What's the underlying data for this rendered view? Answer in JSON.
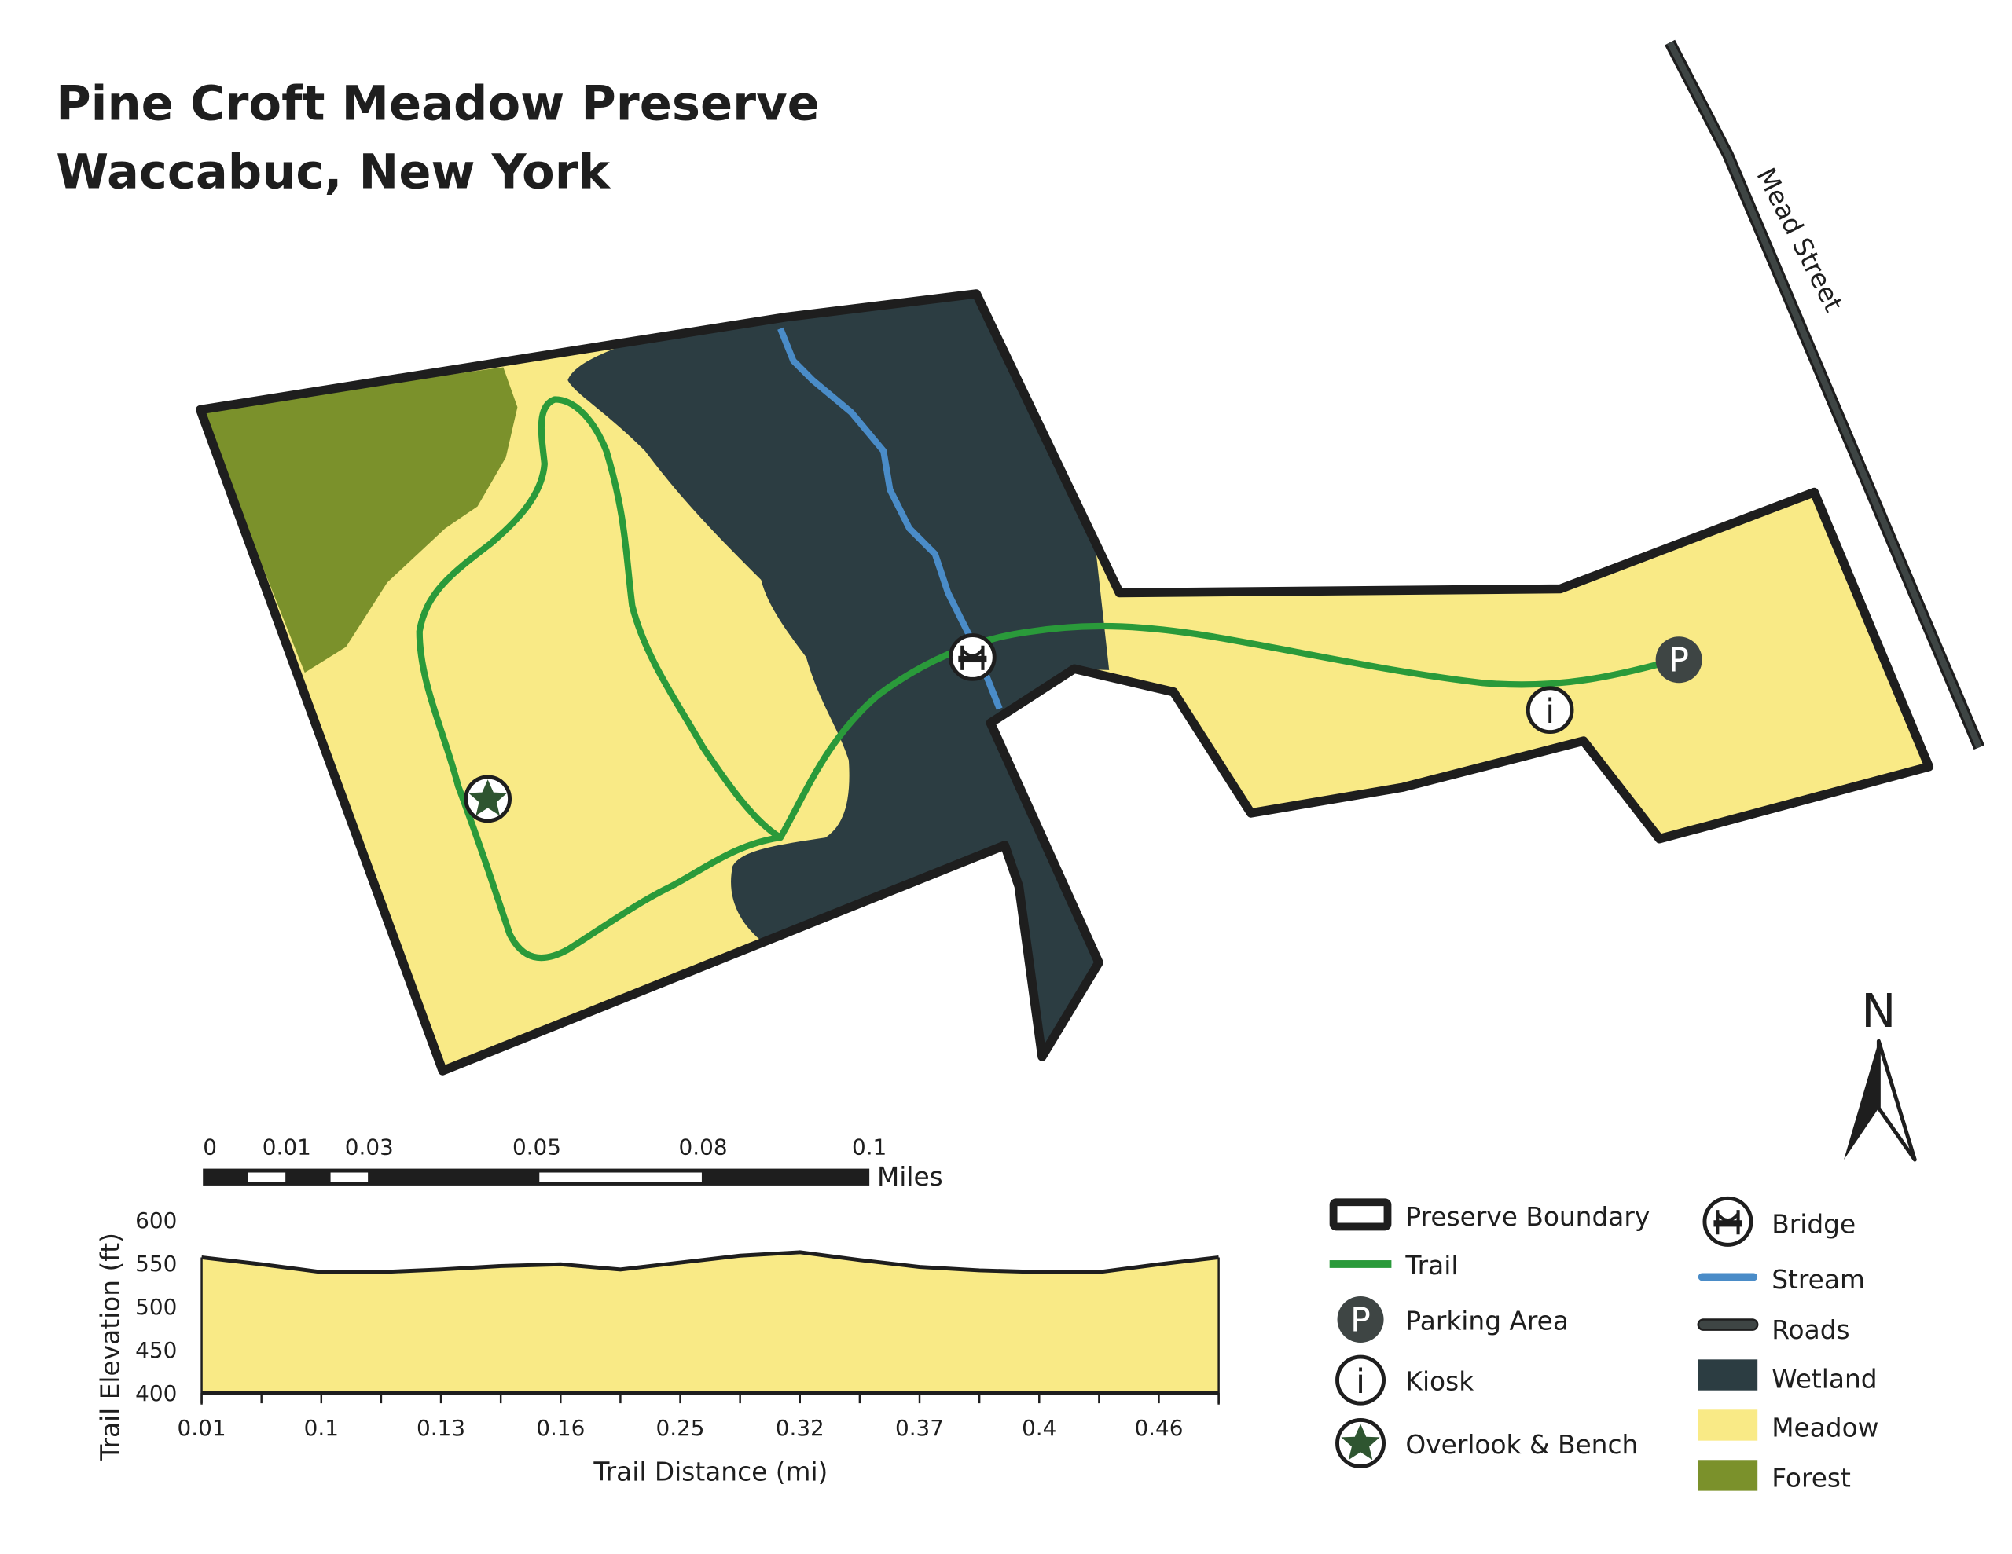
{
  "title": {
    "line1": "Pine Croft Meadow Preserve",
    "line2": "Waccabuc, New York"
  },
  "road_label": "Mead Street",
  "north_label": "N",
  "colors": {
    "boundary": "#1e1e1e",
    "trail": "#2a9a3a",
    "stream": "#4a8cc8",
    "road": "#3e4544",
    "wetland": "#2c3d42",
    "meadow": "#f9ea86",
    "forest": "#7b912b",
    "parking": "#3e4544",
    "overlook_star": "#2e5530"
  },
  "map_symbols": {
    "bridge": "bridge-icon",
    "parking": "parking-icon",
    "kiosk": "info-icon",
    "overlook": "star-icon",
    "parking_letter": "P",
    "kiosk_letter": "i"
  },
  "scale_bar": {
    "labels": [
      "0",
      "0.01",
      "0.03",
      "0.05",
      "0.08",
      "0.1"
    ],
    "unit": "Miles"
  },
  "legend": {
    "left": [
      {
        "icon": "boundary-swatch",
        "label": "Preserve Boundary"
      },
      {
        "icon": "trail-line",
        "label": "Trail"
      },
      {
        "icon": "parking-icon",
        "label": "Parking Area"
      },
      {
        "icon": "info-icon",
        "label": "Kiosk"
      },
      {
        "icon": "star-icon",
        "label": "Overlook & Bench"
      }
    ],
    "right": [
      {
        "icon": "bridge-icon",
        "label": "Bridge"
      },
      {
        "icon": "stream-line",
        "label": "Stream"
      },
      {
        "icon": "road-line",
        "label": "Roads"
      },
      {
        "icon": "wetland-swatch",
        "label": "Wetland"
      },
      {
        "icon": "meadow-swatch",
        "label": "Meadow"
      },
      {
        "icon": "forest-swatch",
        "label": "Forest"
      }
    ]
  },
  "chart_data": {
    "type": "area",
    "xlabel": "Trail Distance (mi)",
    "ylabel": "Trail Elevation (ft)",
    "ylim": [
      400,
      600
    ],
    "yticks": [
      600,
      550,
      500,
      450,
      400
    ],
    "x_tick_labels": [
      "0.01",
      "0.1",
      "0.13",
      "0.16",
      "0.25",
      "0.32",
      "0.37",
      "0.4",
      "0.46"
    ],
    "elevation": [
      557,
      549,
      540,
      540,
      543,
      547,
      549,
      543,
      551,
      559,
      563,
      554,
      546,
      542,
      540,
      540,
      549,
      557
    ],
    "fill": "#f9ea86",
    "grid": false
  }
}
